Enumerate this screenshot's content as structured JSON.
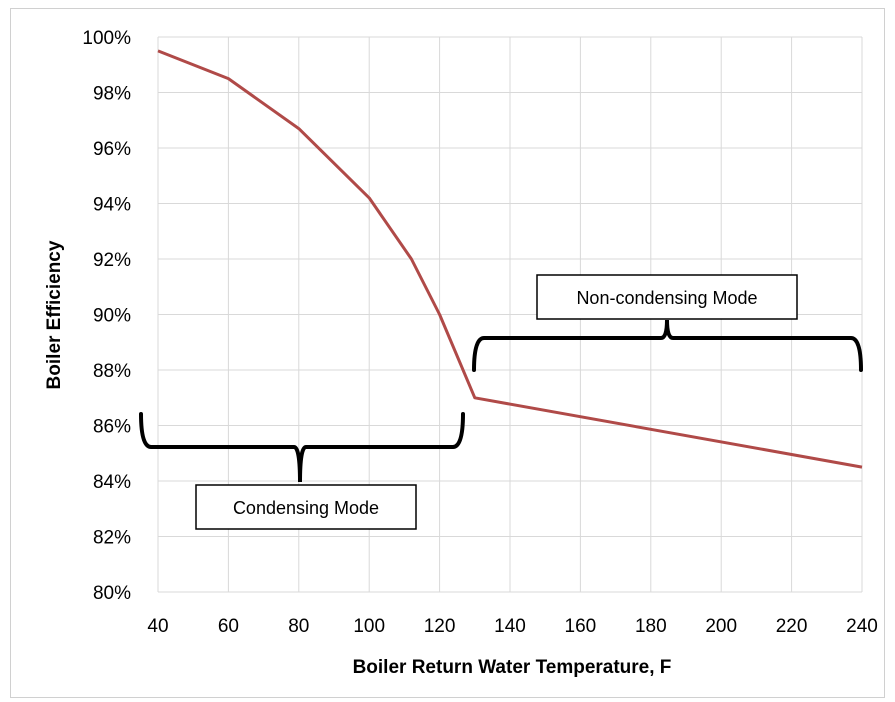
{
  "chart_data": {
    "type": "line",
    "xlabel": "Boiler Return Water Temperature, F",
    "ylabel": "Boiler Efficiency",
    "xlim": [
      40,
      240
    ],
    "ylim": [
      80,
      100
    ],
    "x_ticks": [
      "40",
      "60",
      "80",
      "100",
      "120",
      "140",
      "160",
      "180",
      "200",
      "220",
      "240"
    ],
    "y_ticks": [
      "80%",
      "82%",
      "84%",
      "86%",
      "88%",
      "90%",
      "92%",
      "94%",
      "96%",
      "98%",
      "100%"
    ],
    "grid": true,
    "legend": "none",
    "series": [
      {
        "color": "#b04a48",
        "x": [
          40,
          60,
          80,
          100,
          112,
          120,
          130,
          240
        ],
        "y": [
          99.5,
          98.5,
          96.7,
          94.2,
          92.0,
          90.0,
          87.0,
          84.5
        ]
      }
    ],
    "annotations": [
      {
        "text": "Condensing Mode",
        "range": [
          40,
          130
        ]
      },
      {
        "text": "Non-condensing Mode",
        "range": [
          130,
          240
        ]
      }
    ]
  }
}
